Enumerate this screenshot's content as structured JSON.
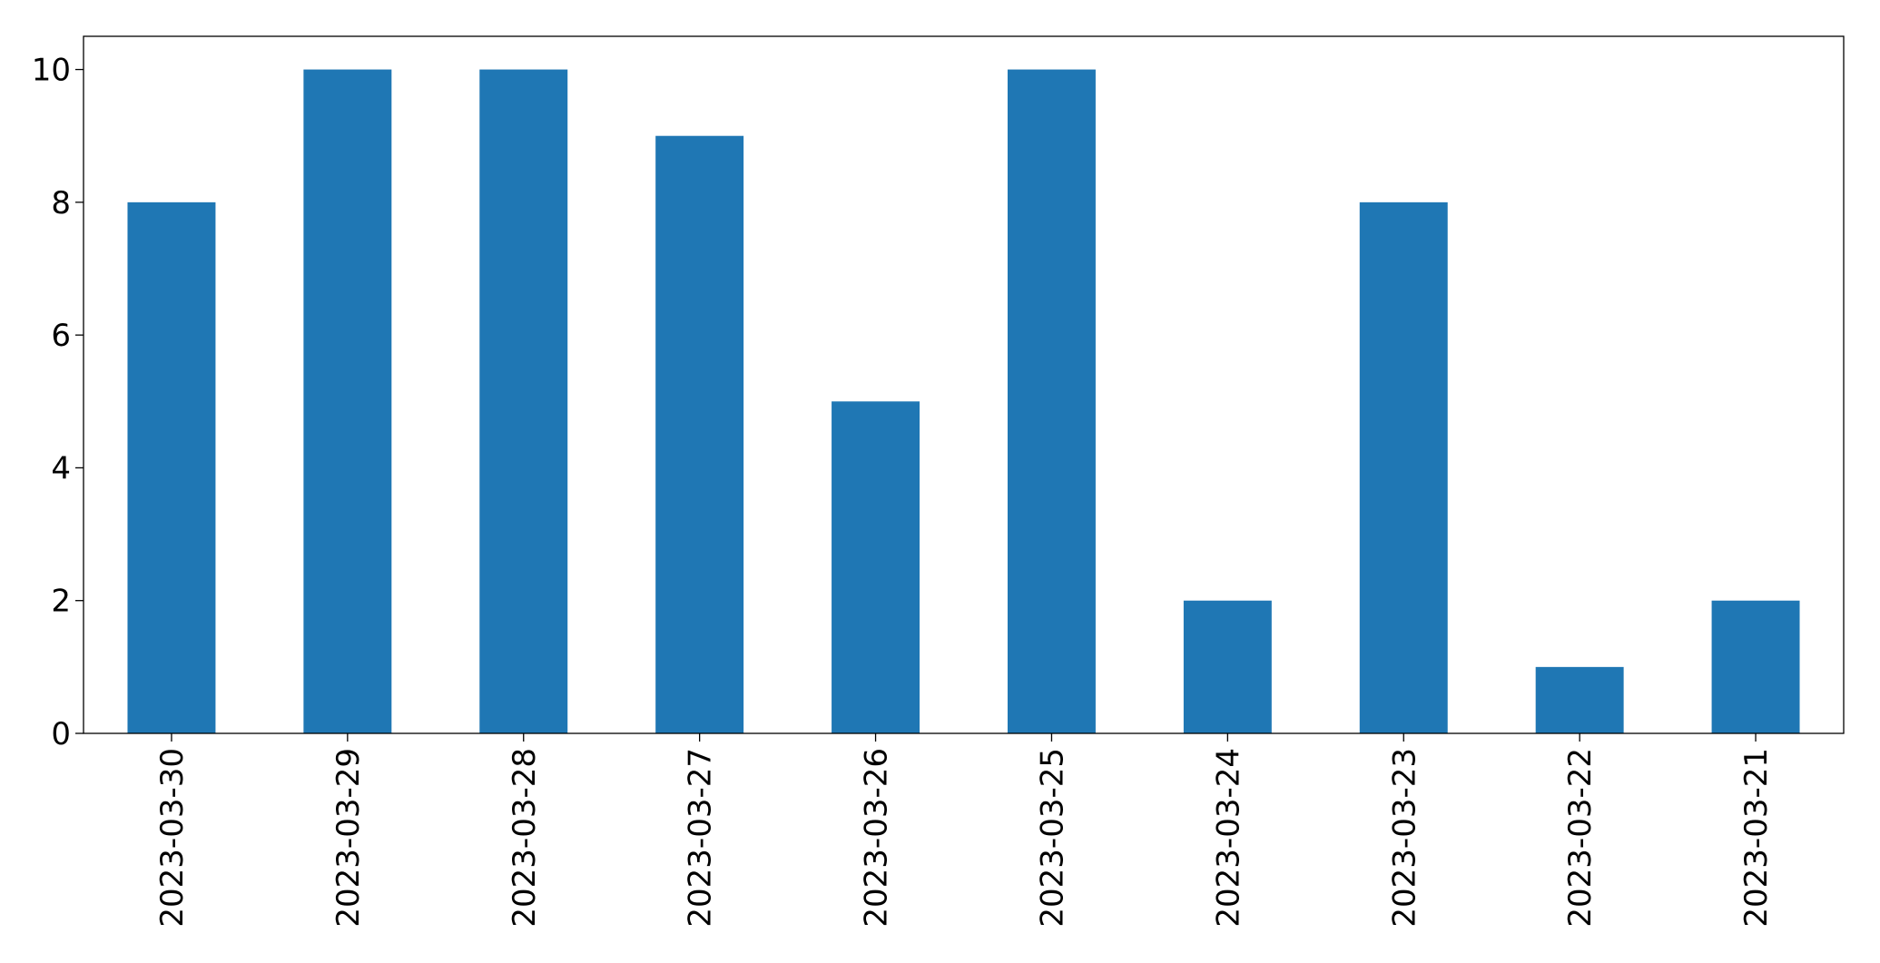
{
  "chart_data": {
    "type": "bar",
    "categories": [
      "2023-03-30",
      "2023-03-29",
      "2023-03-28",
      "2023-03-27",
      "2023-03-26",
      "2023-03-25",
      "2023-03-24",
      "2023-03-23",
      "2023-03-22",
      "2023-03-21"
    ],
    "values": [
      8,
      10,
      10,
      9,
      5,
      10,
      2,
      8,
      1,
      2
    ],
    "color": "#1f77b4",
    "ylim": [
      0,
      10.5
    ],
    "yticks": [
      0,
      2,
      4,
      6,
      8,
      10
    ],
    "grid": false
  }
}
